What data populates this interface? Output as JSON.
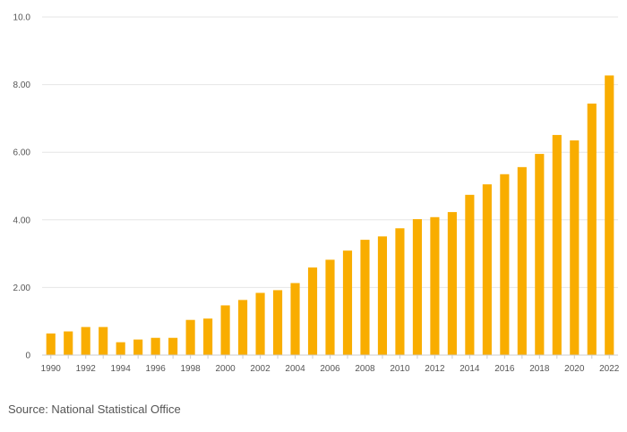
{
  "chart_data": {
    "type": "bar",
    "title": "",
    "xlabel": "",
    "ylabel": "",
    "categories": [
      "1990",
      "1991",
      "1992",
      "1993",
      "1994",
      "1995",
      "1996",
      "1997",
      "1998",
      "1999",
      "2000",
      "2001",
      "2002",
      "2003",
      "2004",
      "2005",
      "2006",
      "2007",
      "2008",
      "2009",
      "2010",
      "2011",
      "2012",
      "2013",
      "2014",
      "2015",
      "2016",
      "2017",
      "2018",
      "2019",
      "2020",
      "2021",
      "2022"
    ],
    "values": [
      0.64,
      0.7,
      0.83,
      0.83,
      0.38,
      0.46,
      0.51,
      0.51,
      1.04,
      1.08,
      1.47,
      1.63,
      1.84,
      1.92,
      2.13,
      2.59,
      2.82,
      3.09,
      3.41,
      3.51,
      3.75,
      4.02,
      4.08,
      4.23,
      4.74,
      5.05,
      5.35,
      5.56,
      5.95,
      6.51,
      6.35,
      7.44,
      8.27
    ],
    "x_tick_labels": [
      "1990",
      "1992",
      "1994",
      "1996",
      "1998",
      "2000",
      "2002",
      "2004",
      "2006",
      "2008",
      "2010",
      "2012",
      "2014",
      "2016",
      "2018",
      "2020",
      "2022"
    ],
    "y_tick_labels": [
      "0",
      "2.00",
      "4.00",
      "6.00",
      "8.00",
      "10.0"
    ],
    "ylim": [
      0,
      10
    ],
    "grid": true,
    "bar_color": "#f9ad00",
    "grid_color": "#e6e6e6",
    "axis_color": "#cccccc"
  },
  "source": "Source: National Statistical Office"
}
